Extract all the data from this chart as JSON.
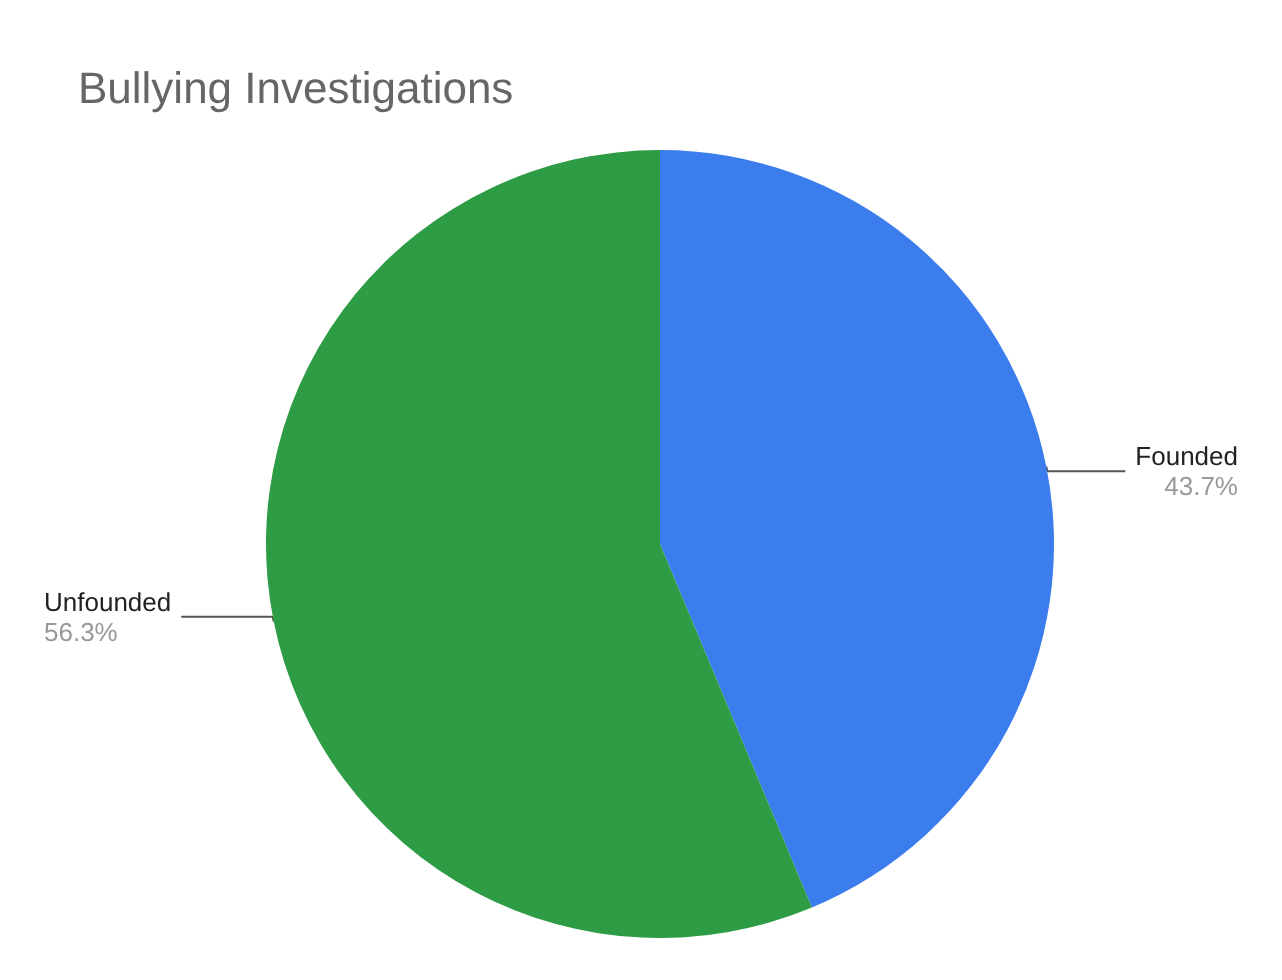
{
  "chart_data": {
    "type": "pie",
    "title": "Bullying Investigations",
    "categories": [
      "Founded",
      "Unfounded"
    ],
    "values": [
      43.7,
      56.3
    ],
    "value_labels": [
      "43.7%",
      "56.3%"
    ],
    "colors": [
      "#3b7ded",
      "#2e9b45"
    ],
    "legend": false
  }
}
